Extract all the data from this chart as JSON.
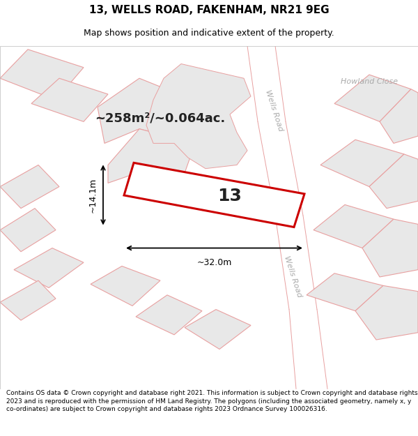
{
  "title": "13, WELLS ROAD, FAKENHAM, NR21 9EG",
  "subtitle": "Map shows position and indicative extent of the property.",
  "area_text": "~258m²/~0.064ac.",
  "property_number": "13",
  "dim_width": "~32.0m",
  "dim_height": "~14.1m",
  "footer": "Contains OS data © Crown copyright and database right 2021. This information is subject to Crown copyright and database rights 2023 and is reproduced with the permission of HM Land Registry. The polygons (including the associated geometry, namely x, y co-ordinates) are subject to Crown copyright and database rights 2023 Ordnance Survey 100026316.",
  "map_bg": "#ffffff",
  "building_fc": "#e8e8e8",
  "building_ec": "#e8a0a0",
  "plot_ec": "#cc0000",
  "road_label_color": "#aaaaaa",
  "text_color": "#222222",
  "fig_width": 6.0,
  "fig_height": 6.25,
  "title_fontsize": 11,
  "subtitle_fontsize": 9,
  "footer_fontsize": 6.5
}
